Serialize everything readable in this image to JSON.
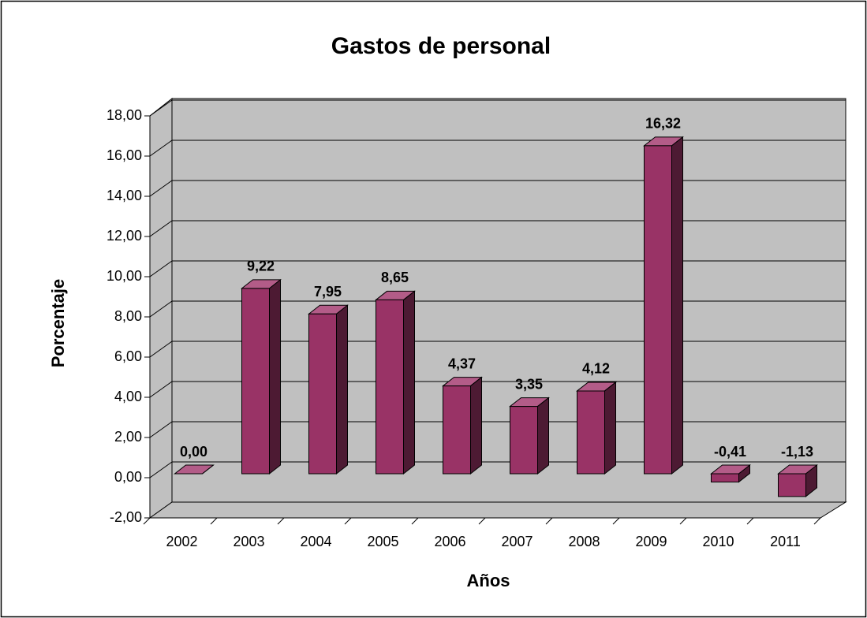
{
  "chart_data": {
    "type": "bar3d",
    "title": "Gastos de personal",
    "x_label": "Años",
    "y_label": "Porcentaje",
    "categories": [
      "2002",
      "2003",
      "2004",
      "2005",
      "2006",
      "2007",
      "2008",
      "2009",
      "2010",
      "2011"
    ],
    "values": [
      0,
      9.22,
      7.95,
      8.65,
      4.37,
      3.35,
      4.12,
      16.32,
      -0.41,
      -1.13
    ],
    "value_labels": [
      "0,00",
      "9,22",
      "7,95",
      "8,65",
      "4,37",
      "3,35",
      "4,12",
      "16,32",
      "-0,41",
      "-1,13"
    ],
    "color": "#993366",
    "ylim": [
      -2,
      18
    ],
    "yticks": [
      {
        "value": -2,
        "label": "-2,00"
      },
      {
        "value": 0,
        "label": "0,00"
      },
      {
        "value": 2,
        "label": "2,00"
      },
      {
        "value": 4,
        "label": "4,00"
      },
      {
        "value": 6,
        "label": "6,00"
      },
      {
        "value": 8,
        "label": "8,00"
      },
      {
        "value": 10,
        "label": "10,00"
      },
      {
        "value": 12,
        "label": "12,00"
      },
      {
        "value": 14,
        "label": "14,00"
      },
      {
        "value": 16,
        "label": "16,00"
      },
      {
        "value": 18,
        "label": "18,00"
      }
    ],
    "grid": true
  }
}
